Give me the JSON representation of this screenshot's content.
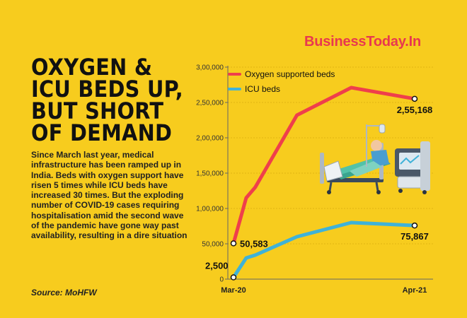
{
  "brand": "BusinessToday.In",
  "headline": [
    "OXYGEN &",
    "ICU BEDS UP,",
    "BUT SHORT",
    "OF DEMAND"
  ],
  "body": "Since March last year, medical infrastructure has been ramped up in India. Beds with oxygen support have risen 5 times while ICU beds have increased 30 times. But the exploding number of COVID-19 cases requiring hospitalisation amid the second wave of the pandemic have gone way past availability, resulting in a dire situation",
  "source": "Source: MoHFW",
  "colors": {
    "background": "#f7cc1e",
    "oxygen": "#ef3f4b",
    "icu": "#3fb2d8",
    "brand": "#e8384f"
  },
  "illustration": "hospital-bed-icon",
  "chart_data": {
    "type": "line",
    "x_tick_labels": [
      "Mar-20",
      "Apr-21"
    ],
    "x": [
      0,
      0.07,
      0.12,
      0.35,
      0.65,
      1.0
    ],
    "ylim": [
      0,
      300000
    ],
    "yticks": [
      0,
      50000,
      100000,
      150000,
      200000,
      250000,
      300000
    ],
    "ytick_labels": [
      "0",
      "50,000",
      "1,00,000",
      "1,50,000",
      "2,00,000",
      "2,50,000",
      "3,00,000"
    ],
    "grid": true,
    "legend_position": "top-left",
    "series": [
      {
        "name": "Oxygen supported beds",
        "color": "#ef3f4b",
        "values": [
          50583,
          115000,
          130000,
          232000,
          271000,
          255168
        ],
        "start_label": "50,583",
        "end_label": "2,55,168"
      },
      {
        "name": "ICU beds",
        "color": "#3fb2d8",
        "values": [
          2500,
          30000,
          34000,
          60000,
          80000,
          75867
        ],
        "start_label": "2,500",
        "end_label": "75,867"
      }
    ]
  }
}
